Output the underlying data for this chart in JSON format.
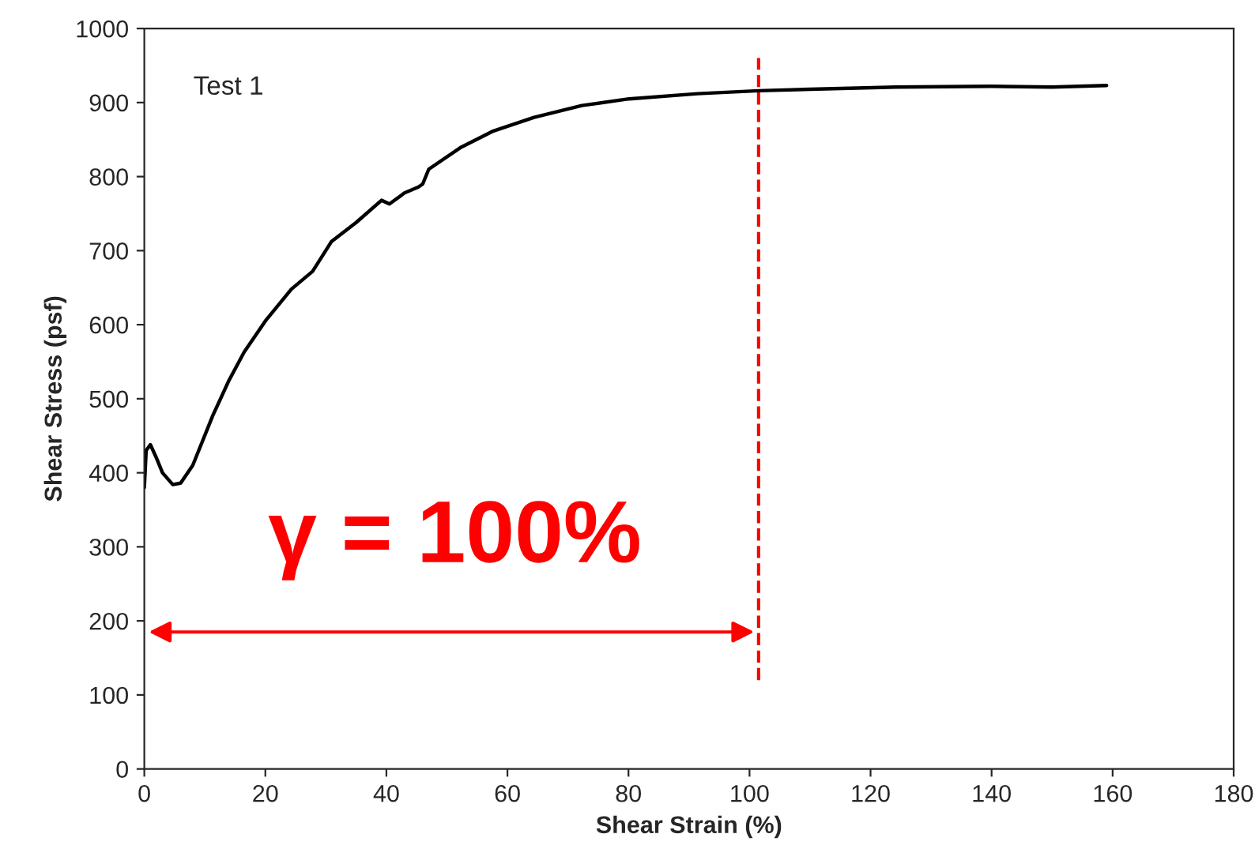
{
  "chart_data": {
    "type": "line",
    "xlabel": "Shear Strain (%)",
    "ylabel": "Shear Stress (psf)",
    "x": [
      0,
      0.3,
      1,
      2,
      3,
      4.7,
      6,
      8,
      11.3,
      14,
      16.5,
      20,
      24.3,
      27.8,
      30.9,
      35,
      39.2,
      40.5,
      43,
      45.3,
      46,
      47,
      52.2,
      57.5,
      64.4,
      72.3,
      80.1,
      91.4,
      101.5,
      110,
      124.2,
      140,
      150,
      159
    ],
    "series": [
      {
        "color": "#000000",
        "values": [
          380,
          430,
          438,
          420,
          400,
          384,
          386,
          410,
          477,
          525,
          563,
          605,
          648,
          672,
          712,
          738,
          768,
          763,
          778,
          786,
          790,
          810,
          839,
          861,
          880,
          896,
          905,
          912,
          916,
          918,
          921,
          922,
          921,
          923
        ]
      }
    ],
    "xlim": [
      0,
      180
    ],
    "ylim": [
      0,
      1000
    ],
    "xticks": [
      0,
      20,
      40,
      60,
      80,
      100,
      120,
      140,
      160,
      180
    ],
    "yticks": [
      0,
      100,
      200,
      300,
      400,
      500,
      600,
      700,
      800,
      900,
      1000
    ],
    "grid": false,
    "legend": false,
    "marker": "none",
    "line_style": "solid",
    "ref_lines": [
      {
        "axis": "x",
        "value": 101.5,
        "color": "#ff0000",
        "line_style": "dashed"
      }
    ],
    "annotations": [
      "Test 1",
      "γ = 100%"
    ]
  }
}
